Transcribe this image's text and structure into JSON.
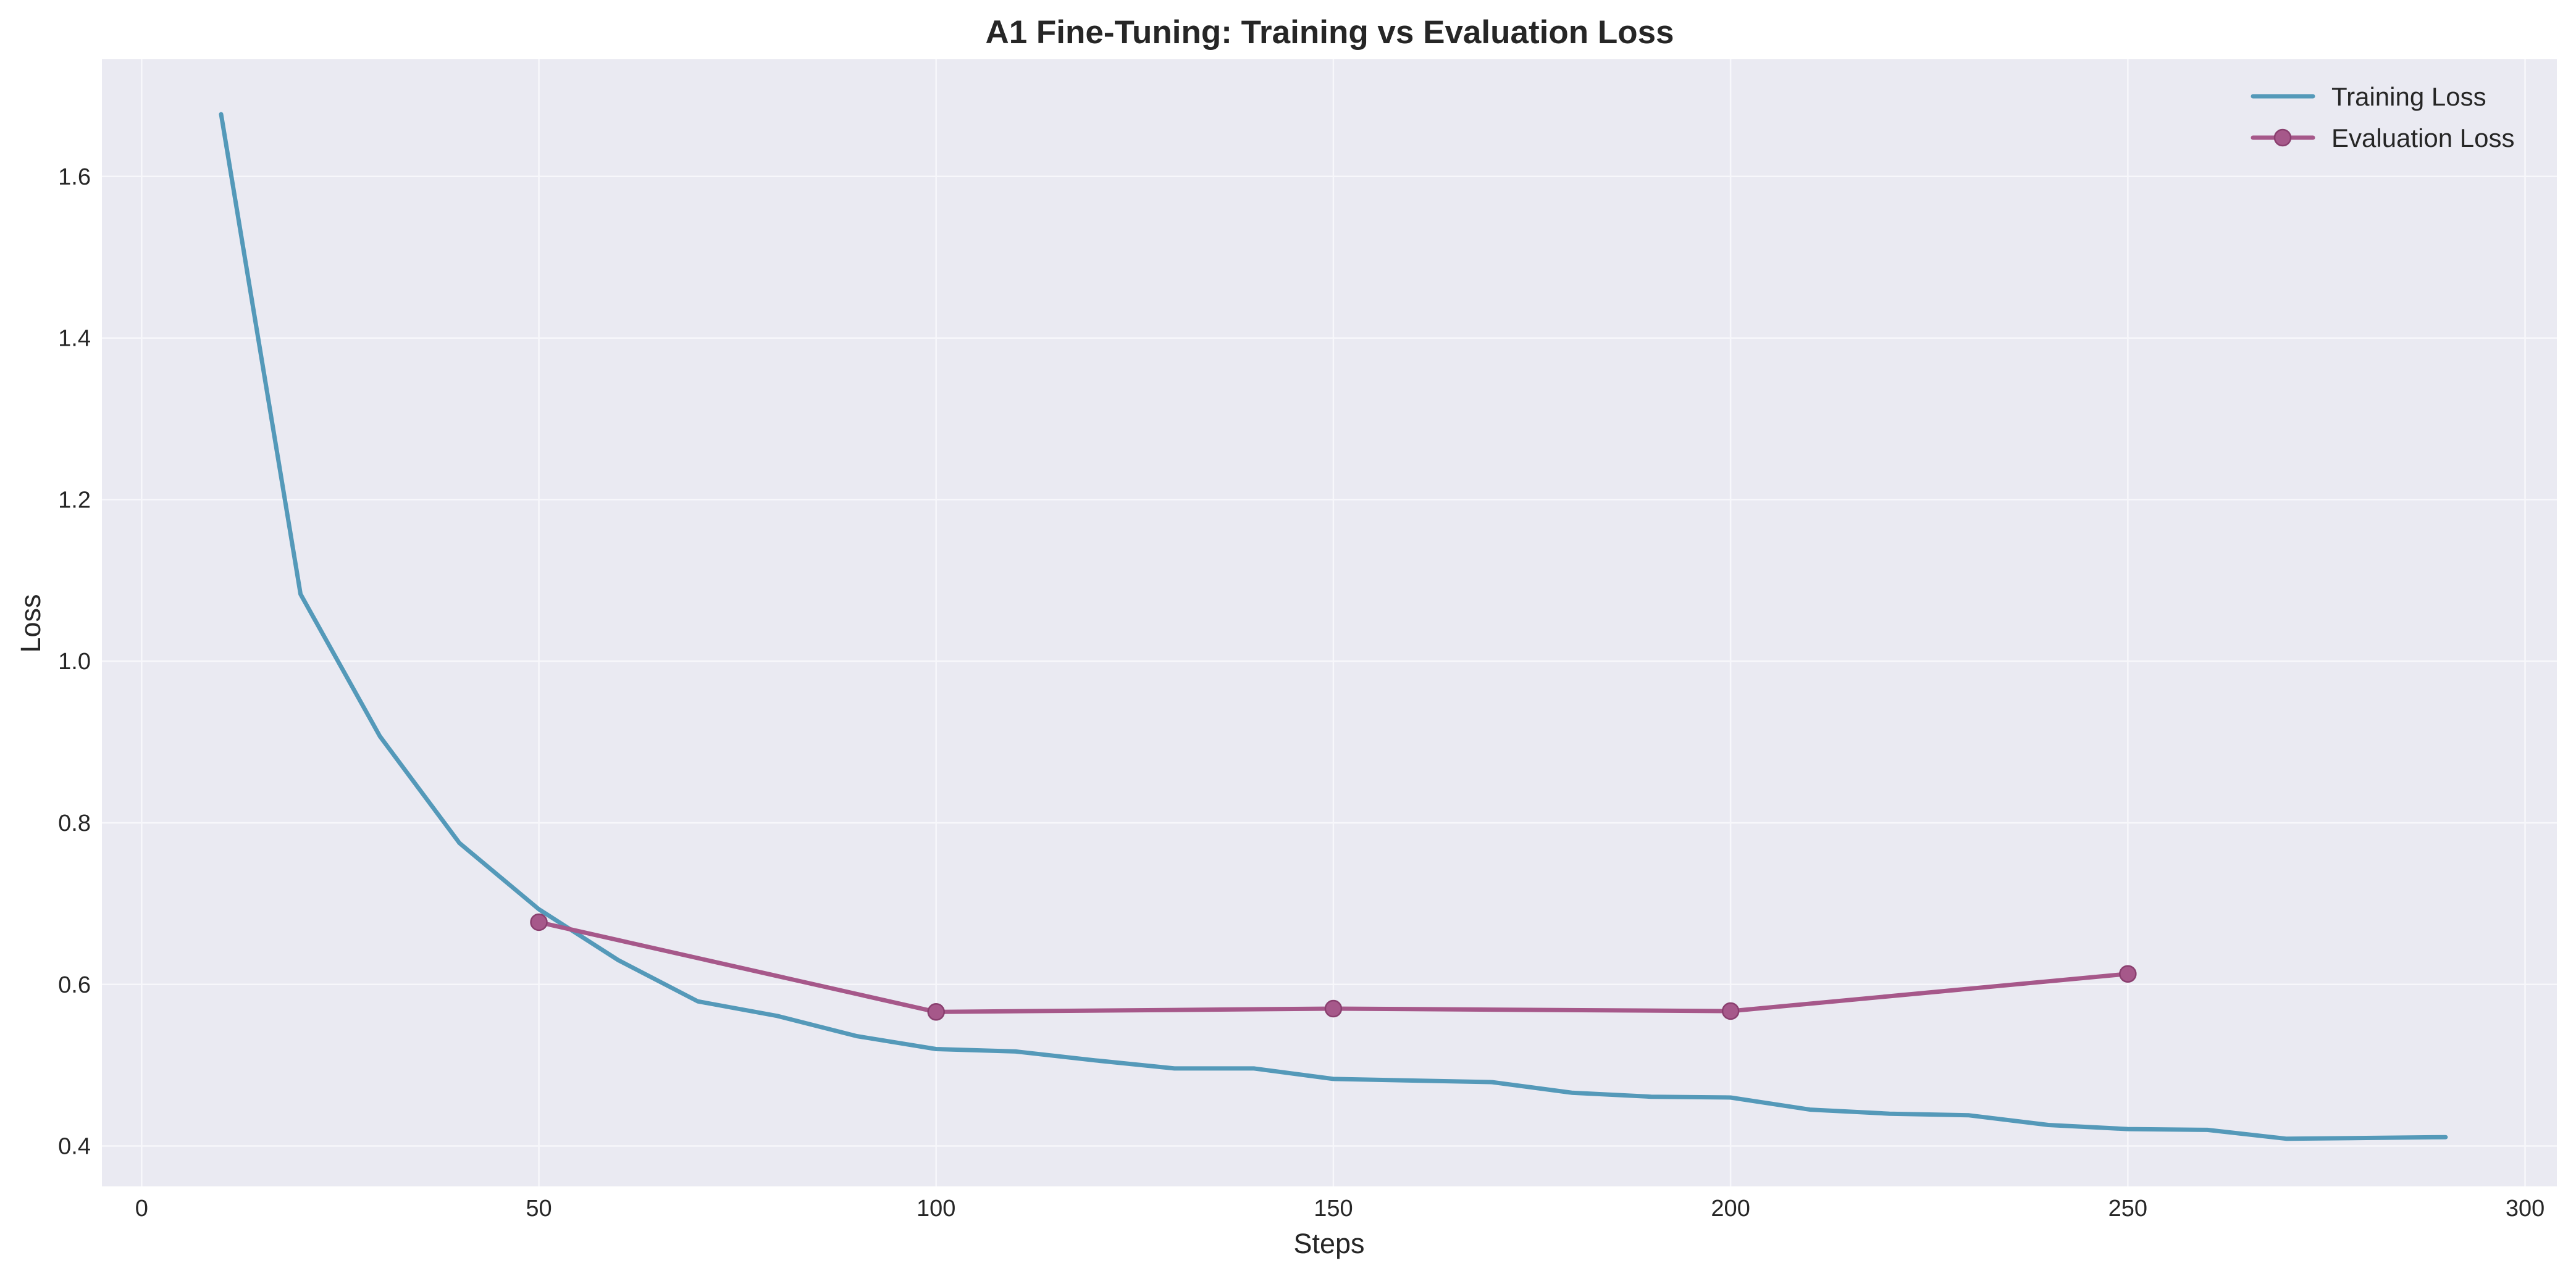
{
  "chart_data": {
    "type": "line",
    "title": "A1 Fine-Tuning: Training vs Evaluation Loss",
    "xlabel": "Steps",
    "ylabel": "Loss",
    "xlim": [
      -5,
      304
    ],
    "ylim": [
      0.35,
      1.745
    ],
    "xticks": [
      0,
      50,
      100,
      150,
      200,
      250,
      300
    ],
    "yticks": [
      0.4,
      0.6,
      0.8,
      1.0,
      1.2,
      1.4,
      1.6
    ],
    "xtick_labels": [
      "0",
      "50",
      "100",
      "150",
      "200",
      "250",
      "300"
    ],
    "ytick_labels": [
      "0.4",
      "0.6",
      "0.8",
      "1.0",
      "1.2",
      "1.4",
      "1.6"
    ],
    "grid": true,
    "legend_position": "top-right",
    "series": [
      {
        "name": "Training Loss",
        "color": "#5499b9",
        "marker": "none",
        "x": [
          10,
          20,
          30,
          40,
          50,
          60,
          70,
          80,
          90,
          100,
          110,
          120,
          130,
          140,
          150,
          160,
          170,
          180,
          190,
          200,
          210,
          220,
          230,
          240,
          250,
          260,
          270,
          280,
          290
        ],
        "y": [
          1.677,
          1.083,
          0.907,
          0.775,
          0.693,
          0.63,
          0.579,
          0.561,
          0.536,
          0.52,
          0.517,
          0.506,
          0.496,
          0.496,
          0.483,
          0.481,
          0.479,
          0.466,
          0.461,
          0.46,
          0.445,
          0.44,
          0.438,
          0.426,
          0.421,
          0.42,
          0.409,
          0.41,
          0.411
        ]
      },
      {
        "name": "Evaluation Loss",
        "color": "#a6588a",
        "marker": "circle",
        "x": [
          50,
          100,
          150,
          200,
          250
        ],
        "y": [
          0.677,
          0.566,
          0.57,
          0.567,
          0.613
        ]
      }
    ]
  }
}
